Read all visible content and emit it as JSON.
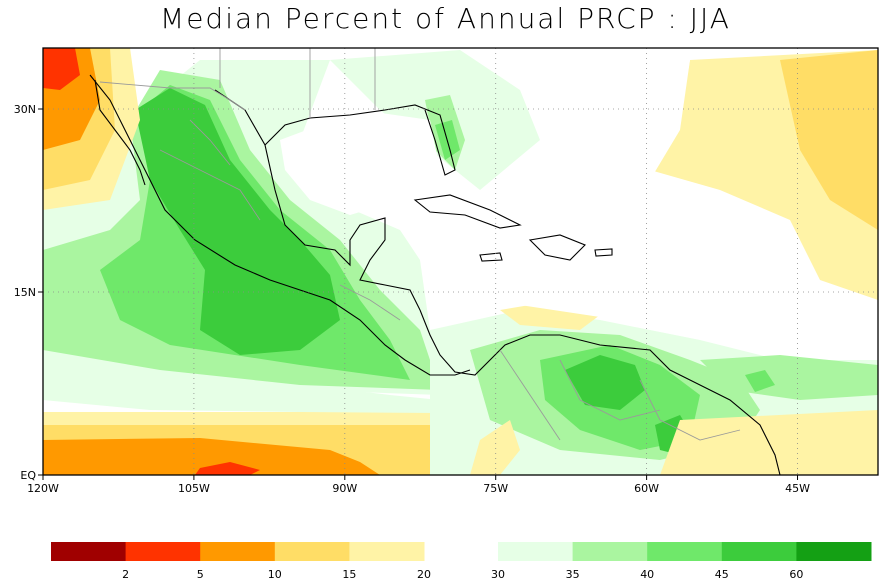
{
  "title": "Median Percent of Annual PRCP  :  JJA",
  "map": {
    "lon_range": [
      -120,
      -37
    ],
    "lat_range": [
      0,
      35
    ],
    "lon_ticks": [
      {
        "value": -120,
        "label": "120W"
      },
      {
        "value": -105,
        "label": "105W"
      },
      {
        "value": -90,
        "label": "90W"
      },
      {
        "value": -75,
        "label": "75W"
      },
      {
        "value": -60,
        "label": "60W"
      },
      {
        "value": -45,
        "label": "45W"
      }
    ],
    "lat_ticks": [
      {
        "value": 0,
        "label": "EQ"
      },
      {
        "value": 15,
        "label": "15N"
      },
      {
        "value": 30,
        "label": "30N"
      }
    ],
    "grid": "dotted"
  },
  "legend": {
    "left_colors": [
      "#a00000",
      "#ff3300",
      "#ff9900",
      "#ffdd66",
      "#fff3a6"
    ],
    "right_colors": [
      "#e6ffe6",
      "#aaf5a0",
      "#6fe86a",
      "#3ccc3c",
      "#14a014"
    ],
    "left_labels": [
      "2",
      "5",
      "10",
      "15",
      "20"
    ],
    "right_labels": [
      "30",
      "35",
      "40",
      "45",
      "60"
    ]
  },
  "colors": {
    "red": "#a00000",
    "orange_red": "#ff3300",
    "orange": "#ff9900",
    "yellow": "#ffdd66",
    "pale_yellow": "#fff3a6",
    "pale_green": "#e6ffe6",
    "light_green": "#aaf5a0",
    "green": "#6fe86a",
    "mid_green": "#3ccc3c",
    "dark_green": "#14a014"
  }
}
